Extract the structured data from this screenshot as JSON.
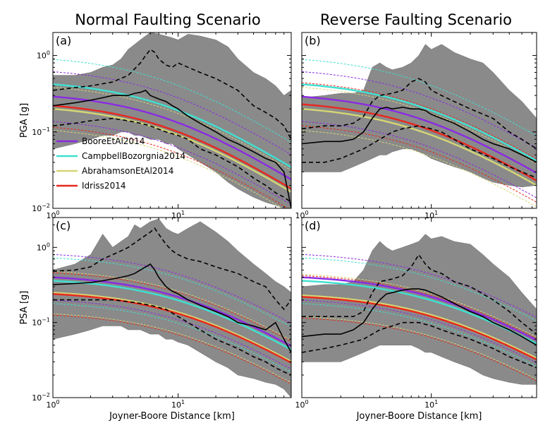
{
  "figure": {
    "column_titles": [
      "Normal Faulting Scenario",
      "Reverse Faulting Scenario"
    ]
  },
  "chart_data": [
    {
      "type": "line",
      "panel_label": "(a)",
      "title": "Normal Faulting Scenario",
      "xlabel": "",
      "ylabel": "PGA [g]",
      "xscale": "log",
      "yscale": "log",
      "xlim": [
        1,
        80
      ],
      "ylim": [
        0.01,
        2.0
      ],
      "x_ticks": [
        {
          "v": 1,
          "b": "10",
          "e": "0"
        },
        {
          "v": 10,
          "b": "10",
          "e": "1"
        }
      ],
      "y_ticks": [
        {
          "v": 0.01,
          "b": "10",
          "e": "−2"
        },
        {
          "v": 0.1,
          "b": "10",
          "e": "−1"
        },
        {
          "v": 1,
          "b": "10",
          "e": "0"
        }
      ],
      "legend": {
        "placement": "lower-left",
        "entries": [
          "BooreEtAl2014",
          "CampbellBozorgnia2014",
          "AbrahamsonEtAl2014",
          "Idriss2014"
        ]
      },
      "simulation_band": {
        "x": [
          1,
          1.5,
          2,
          2.5,
          3,
          3.5,
          4,
          4.5,
          5,
          6,
          7,
          8,
          9,
          10,
          12,
          15,
          20,
          25,
          30,
          40,
          50,
          60,
          70,
          80
        ],
        "upper": [
          0.55,
          0.55,
          0.6,
          0.7,
          0.75,
          0.9,
          1.2,
          1.4,
          1.6,
          2.0,
          1.9,
          1.8,
          1.7,
          1.6,
          1.9,
          1.8,
          1.6,
          1.3,
          0.9,
          0.6,
          0.5,
          0.4,
          0.3,
          0.35
        ],
        "lower": [
          0.06,
          0.07,
          0.08,
          0.09,
          0.09,
          0.1,
          0.1,
          0.09,
          0.09,
          0.08,
          0.08,
          0.07,
          0.07,
          0.06,
          0.05,
          0.04,
          0.03,
          0.022,
          0.018,
          0.014,
          0.012,
          0.011,
          0.01,
          0.01
        ]
      },
      "simulation_median": {
        "x": [
          1,
          1.5,
          2,
          2.5,
          3,
          3.5,
          4,
          4.5,
          5,
          5.5,
          6,
          7,
          8,
          9,
          10,
          12,
          15,
          20,
          25,
          30,
          40,
          50,
          60,
          70,
          80
        ],
        "y": [
          0.22,
          0.24,
          0.26,
          0.28,
          0.3,
          0.3,
          0.3,
          0.32,
          0.33,
          0.35,
          0.3,
          0.27,
          0.25,
          0.22,
          0.2,
          0.16,
          0.13,
          0.1,
          0.08,
          0.07,
          0.055,
          0.045,
          0.04,
          0.03,
          0.01
        ]
      },
      "simulation_upper": {
        "x": [
          1,
          1.5,
          2,
          3,
          4,
          5,
          5.5,
          6,
          6.5,
          7,
          8,
          9,
          10,
          12,
          15,
          20,
          30,
          40,
          50,
          60,
          70,
          80
        ],
        "y": [
          0.35,
          0.38,
          0.4,
          0.45,
          0.55,
          0.8,
          1.0,
          1.2,
          1.1,
          0.9,
          0.75,
          0.7,
          0.8,
          0.7,
          0.6,
          0.5,
          0.35,
          0.22,
          0.18,
          0.15,
          0.12,
          0.08
        ]
      },
      "simulation_lower": {
        "x": [
          1,
          1.5,
          2,
          3,
          4,
          5,
          6,
          8,
          10,
          12,
          15,
          20,
          30,
          40,
          50,
          60,
          70,
          80
        ],
        "y": [
          0.12,
          0.13,
          0.14,
          0.15,
          0.14,
          0.13,
          0.12,
          0.1,
          0.09,
          0.08,
          0.06,
          0.05,
          0.035,
          0.025,
          0.02,
          0.016,
          0.014,
          0.012
        ]
      },
      "gmm": [
        {
          "name": "BooreEtAl2014",
          "color": "#8a2be2",
          "y0": 0.29,
          "sigma": 0.75
        },
        {
          "name": "CampbellBozorgnia2014",
          "color": "#40e0d0",
          "y0": 0.42,
          "sigma": 0.75
        },
        {
          "name": "AbrahamsonEtAl2014",
          "color": "#d4d675",
          "y0": 0.2,
          "sigma": 0.65
        },
        {
          "name": "Idriss2014",
          "color": "#e8281e",
          "y0": 0.22,
          "sigma": 0.65
        }
      ],
      "gmm_decay": {
        "c": 0.62,
        "n": 1.05,
        "x_ref": 5
      }
    },
    {
      "type": "line",
      "panel_label": "(b)",
      "title": "Reverse Faulting Scenario",
      "xlabel": "",
      "ylabel": "",
      "xscale": "log",
      "yscale": "log",
      "xlim": [
        1,
        65
      ],
      "ylim": [
        0.01,
        2.0
      ],
      "x_ticks": [
        {
          "v": 1,
          "b": "10",
          "e": "0"
        },
        {
          "v": 10,
          "b": "10",
          "e": "1"
        }
      ],
      "y_ticks": [],
      "simulation_band": {
        "x": [
          1,
          1.5,
          2,
          2.5,
          3,
          3.5,
          4,
          4.5,
          5,
          6,
          7,
          8,
          9,
          10,
          12,
          15,
          20,
          25,
          30,
          40,
          50,
          65
        ],
        "upper": [
          0.28,
          0.3,
          0.32,
          0.32,
          0.35,
          0.7,
          0.8,
          0.7,
          0.65,
          0.7,
          0.8,
          1.0,
          1.4,
          1.2,
          1.4,
          1.1,
          0.9,
          0.8,
          0.6,
          0.35,
          0.25,
          0.15
        ],
        "lower": [
          0.03,
          0.03,
          0.03,
          0.035,
          0.04,
          0.045,
          0.05,
          0.05,
          0.055,
          0.06,
          0.06,
          0.055,
          0.05,
          0.045,
          0.04,
          0.035,
          0.03,
          0.025,
          0.022,
          0.02,
          0.019,
          0.02
        ]
      },
      "simulation_median": {
        "x": [
          1,
          1.5,
          2,
          2.5,
          3,
          3.5,
          4,
          4.5,
          5,
          6,
          7,
          8,
          9,
          10,
          12,
          15,
          20,
          25,
          30,
          40,
          50,
          65
        ],
        "y": [
          0.07,
          0.075,
          0.075,
          0.08,
          0.1,
          0.15,
          0.2,
          0.21,
          0.2,
          0.21,
          0.2,
          0.2,
          0.19,
          0.17,
          0.15,
          0.13,
          0.1,
          0.08,
          0.07,
          0.06,
          0.05,
          0.04
        ]
      },
      "simulation_upper": {
        "x": [
          1,
          1.5,
          2,
          2.5,
          3,
          3.5,
          4,
          5,
          6,
          7,
          8,
          9,
          10,
          12,
          15,
          20,
          30,
          40,
          50,
          65
        ],
        "y": [
          0.11,
          0.12,
          0.12,
          0.13,
          0.16,
          0.25,
          0.3,
          0.32,
          0.35,
          0.45,
          0.5,
          0.45,
          0.35,
          0.3,
          0.25,
          0.2,
          0.15,
          0.1,
          0.08,
          0.06
        ]
      },
      "simulation_lower": {
        "x": [
          1,
          1.5,
          2,
          3,
          4,
          5,
          6,
          8,
          10,
          12,
          15,
          20,
          30,
          40,
          50,
          65
        ],
        "y": [
          0.04,
          0.04,
          0.045,
          0.06,
          0.08,
          0.1,
          0.11,
          0.12,
          0.11,
          0.1,
          0.08,
          0.06,
          0.045,
          0.035,
          0.03,
          0.025
        ]
      },
      "gmm": [
        {
          "name": "BooreEtAl2014",
          "color": "#8a2be2",
          "y0": 0.29,
          "sigma": 0.75
        },
        {
          "name": "CampbellBozorgnia2014",
          "color": "#40e0d0",
          "y0": 0.42,
          "sigma": 0.75
        },
        {
          "name": "AbrahamsonEtAl2014",
          "color": "#d4d675",
          "y0": 0.2,
          "sigma": 0.65
        },
        {
          "name": "Idriss2014",
          "color": "#e8281e",
          "y0": 0.23,
          "sigma": 0.65
        }
      ],
      "gmm_decay": {
        "c": 0.62,
        "n": 1.05,
        "x_ref": 5
      }
    },
    {
      "type": "line",
      "panel_label": "(c)",
      "title": "",
      "xlabel": "Joyner-Boore Distance [km]",
      "ylabel": "PSA [g]",
      "xscale": "log",
      "yscale": "log",
      "xlim": [
        1,
        80
      ],
      "ylim": [
        0.01,
        2.5
      ],
      "x_ticks": [
        {
          "v": 1,
          "b": "10",
          "e": "0"
        },
        {
          "v": 10,
          "b": "10",
          "e": "1"
        }
      ],
      "y_ticks": [
        {
          "v": 0.01,
          "b": "10",
          "e": "−2"
        },
        {
          "v": 0.1,
          "b": "10",
          "e": "−1"
        },
        {
          "v": 1,
          "b": "10",
          "e": "0"
        }
      ],
      "simulation_band": {
        "x": [
          1,
          1.5,
          2,
          2.5,
          3,
          3.5,
          4,
          4.5,
          5,
          6,
          7,
          8,
          9,
          10,
          12,
          15,
          20,
          25,
          30,
          40,
          50,
          60,
          70,
          80
        ],
        "upper": [
          0.5,
          0.6,
          0.8,
          1.5,
          1.0,
          1.2,
          1.4,
          2.0,
          1.8,
          2.2,
          2.4,
          1.8,
          1.6,
          1.5,
          1.8,
          2.2,
          1.6,
          1.2,
          0.9,
          0.6,
          0.45,
          0.35,
          0.3,
          0.25
        ],
        "lower": [
          0.06,
          0.07,
          0.08,
          0.09,
          0.09,
          0.09,
          0.08,
          0.08,
          0.08,
          0.07,
          0.07,
          0.06,
          0.06,
          0.055,
          0.05,
          0.04,
          0.03,
          0.025,
          0.02,
          0.018,
          0.016,
          0.015,
          0.013,
          0.01
        ]
      },
      "simulation_median": {
        "x": [
          1,
          1.5,
          2,
          2.5,
          3,
          3.5,
          4,
          4.5,
          5,
          5.5,
          6,
          6.5,
          7,
          8,
          9,
          10,
          12,
          15,
          20,
          25,
          30,
          40,
          50,
          60,
          70,
          80
        ],
        "y": [
          0.32,
          0.33,
          0.34,
          0.36,
          0.38,
          0.4,
          0.42,
          0.45,
          0.5,
          0.55,
          0.6,
          0.5,
          0.4,
          0.3,
          0.26,
          0.24,
          0.2,
          0.17,
          0.14,
          0.12,
          0.1,
          0.09,
          0.08,
          0.1,
          0.06,
          0.04
        ]
      },
      "simulation_upper": {
        "x": [
          1,
          1.5,
          2,
          2.5,
          3,
          3.5,
          4,
          5,
          6,
          6.5,
          7,
          8,
          9,
          10,
          12,
          15,
          20,
          30,
          40,
          50,
          60,
          70,
          80
        ],
        "y": [
          0.48,
          0.5,
          0.55,
          0.7,
          0.8,
          0.9,
          1.0,
          1.3,
          1.6,
          1.8,
          1.5,
          1.1,
          0.9,
          0.8,
          0.7,
          0.65,
          0.55,
          0.45,
          0.35,
          0.3,
          0.2,
          0.15,
          0.2
        ]
      },
      "simulation_lower": {
        "x": [
          1,
          1.5,
          2,
          3,
          4,
          5,
          6,
          8,
          10,
          12,
          15,
          20,
          30,
          40,
          50,
          60,
          70,
          80
        ],
        "y": [
          0.2,
          0.2,
          0.2,
          0.2,
          0.19,
          0.18,
          0.17,
          0.15,
          0.12,
          0.1,
          0.08,
          0.06,
          0.045,
          0.035,
          0.03,
          0.025,
          0.022,
          0.02
        ]
      },
      "gmm": [
        {
          "name": "BooreEtAl2014",
          "color": "#8a2be2",
          "y0": 0.4,
          "sigma": 0.7
        },
        {
          "name": "CampbellBozorgnia2014",
          "color": "#40e0d0",
          "y0": 0.36,
          "sigma": 0.7
        },
        {
          "name": "AbrahamsonEtAl2014",
          "color": "#d4d675",
          "y0": 0.25,
          "sigma": 0.65
        },
        {
          "name": "Idriss2014",
          "color": "#e8281e",
          "y0": 0.24,
          "sigma": 0.65
        }
      ],
      "gmm_decay": {
        "c": 0.55,
        "n": 1.0,
        "x_ref": 6
      }
    },
    {
      "type": "line",
      "panel_label": "(d)",
      "title": "",
      "xlabel": "Joyner-Boore Distance [km]",
      "ylabel": "",
      "xscale": "log",
      "yscale": "log",
      "xlim": [
        1,
        65
      ],
      "ylim": [
        0.01,
        2.5
      ],
      "x_ticks": [
        {
          "v": 1,
          "b": "10",
          "e": "0"
        },
        {
          "v": 10,
          "b": "10",
          "e": "1"
        }
      ],
      "y_ticks": [],
      "simulation_band": {
        "x": [
          1,
          1.5,
          2,
          2.5,
          3,
          3.5,
          4,
          4.5,
          5,
          6,
          7,
          8,
          9,
          10,
          12,
          15,
          20,
          25,
          30,
          40,
          50,
          65
        ],
        "upper": [
          0.3,
          0.32,
          0.32,
          0.35,
          0.5,
          0.9,
          1.2,
          1.0,
          0.9,
          1.0,
          1.1,
          1.2,
          1.5,
          1.3,
          1.4,
          1.2,
          1.1,
          0.8,
          0.6,
          0.4,
          0.25,
          0.15
        ],
        "lower": [
          0.03,
          0.03,
          0.03,
          0.035,
          0.04,
          0.045,
          0.05,
          0.05,
          0.05,
          0.05,
          0.05,
          0.045,
          0.04,
          0.04,
          0.035,
          0.03,
          0.025,
          0.02,
          0.018,
          0.016,
          0.015,
          0.015
        ]
      },
      "simulation_median": {
        "x": [
          1,
          1.5,
          2,
          2.5,
          3,
          3.5,
          4,
          4.5,
          5,
          6,
          7,
          8,
          9,
          10,
          12,
          15,
          20,
          25,
          30,
          40,
          50,
          65
        ],
        "y": [
          0.065,
          0.07,
          0.07,
          0.08,
          0.1,
          0.15,
          0.2,
          0.24,
          0.25,
          0.27,
          0.28,
          0.28,
          0.27,
          0.25,
          0.22,
          0.18,
          0.14,
          0.12,
          0.1,
          0.08,
          0.065,
          0.05
        ]
      },
      "simulation_upper": {
        "x": [
          1,
          1.5,
          2,
          2.5,
          3,
          3.5,
          4,
          5,
          6,
          7,
          8,
          9,
          10,
          12,
          15,
          20,
          30,
          40,
          50,
          65
        ],
        "y": [
          0.12,
          0.12,
          0.12,
          0.12,
          0.14,
          0.25,
          0.35,
          0.38,
          0.42,
          0.55,
          0.8,
          0.6,
          0.5,
          0.45,
          0.35,
          0.3,
          0.2,
          0.14,
          0.1,
          0.07
        ]
      },
      "simulation_lower": {
        "x": [
          1,
          1.5,
          2,
          3,
          4,
          5,
          6,
          8,
          10,
          12,
          15,
          20,
          30,
          40,
          50,
          65
        ],
        "y": [
          0.04,
          0.045,
          0.05,
          0.06,
          0.08,
          0.09,
          0.1,
          0.1,
          0.09,
          0.08,
          0.07,
          0.06,
          0.045,
          0.035,
          0.03,
          0.025
        ]
      },
      "gmm": [
        {
          "name": "BooreEtAl2014",
          "color": "#8a2be2",
          "y0": 0.4,
          "sigma": 0.7
        },
        {
          "name": "CampbellBozorgnia2014",
          "color": "#40e0d0",
          "y0": 0.36,
          "sigma": 0.7
        },
        {
          "name": "AbrahamsonEtAl2014",
          "color": "#d4d675",
          "y0": 0.23,
          "sigma": 0.65
        },
        {
          "name": "Idriss2014",
          "color": "#e8281e",
          "y0": 0.22,
          "sigma": 0.65
        }
      ],
      "gmm_decay": {
        "c": 0.55,
        "n": 1.0,
        "x_ref": 6
      }
    }
  ]
}
